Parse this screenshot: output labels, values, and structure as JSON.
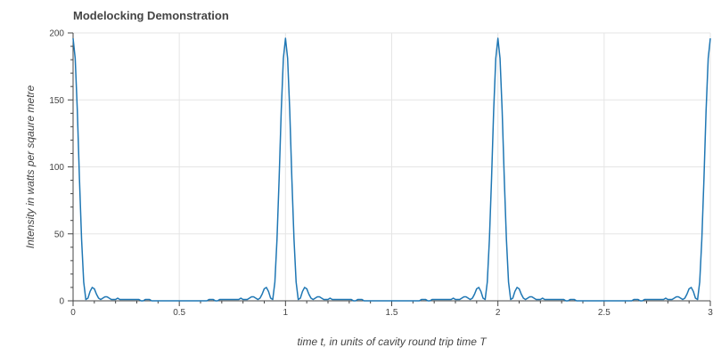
{
  "chart_data": {
    "type": "line",
    "title": "Modelocking Demonstration",
    "xlabel": "time t, in units of cavity round trip time T",
    "ylabel": "Intensity in watts per sqaure metre",
    "xlim": [
      0,
      3
    ],
    "ylim": [
      0,
      200
    ],
    "grid": true,
    "x_ticks": [
      0,
      0.5,
      1,
      1.5,
      2,
      2.5,
      3
    ],
    "x_tick_labels": [
      "0",
      "0.5",
      "1",
      "1.5",
      "2",
      "2.5",
      "3"
    ],
    "y_ticks": [
      0,
      50,
      100,
      150,
      200
    ],
    "y_tick_labels": [
      "0",
      "50",
      "100",
      "150",
      "200"
    ],
    "series": [
      {
        "color": "#1f77b4",
        "peak_value": 196,
        "peak_positions": [
          0,
          1,
          2,
          3
        ],
        "x": [
          0,
          0.01,
          0.02,
          0.03,
          0.04,
          0.05,
          0.06,
          0.07,
          0.08,
          0.09,
          0.1,
          0.11,
          0.12,
          0.13,
          0.14,
          0.15,
          0.16,
          0.17,
          0.18,
          0.19,
          0.2,
          0.21,
          0.22,
          0.23,
          0.24,
          0.25,
          0.26,
          0.27,
          0.28,
          0.29,
          0.3,
          0.31,
          0.32,
          0.33,
          0.34,
          0.35,
          0.36,
          0.37,
          0.38,
          0.39,
          0.4,
          0.41,
          0.42,
          0.43,
          0.44,
          0.45,
          0.46,
          0.47,
          0.48,
          0.49,
          0.5,
          0.51,
          0.52,
          0.53,
          0.54,
          0.55,
          0.56,
          0.57,
          0.58,
          0.59,
          0.6,
          0.61,
          0.62,
          0.63,
          0.64,
          0.65,
          0.66,
          0.67,
          0.68,
          0.69,
          0.7,
          0.71,
          0.72,
          0.73,
          0.74,
          0.75,
          0.76,
          0.77,
          0.78,
          0.79,
          0.8,
          0.81,
          0.82,
          0.83,
          0.84,
          0.85,
          0.86,
          0.87,
          0.88,
          0.89,
          0.9,
          0.91,
          0.92,
          0.93,
          0.94,
          0.95,
          0.96,
          0.97,
          0.98,
          0.99,
          1
        ],
        "y": [
          196,
          181,
          142,
          91,
          46,
          14,
          1,
          2,
          7,
          10,
          9,
          5,
          2,
          1,
          2,
          3,
          3,
          2,
          1,
          1,
          1,
          2,
          1,
          1,
          1,
          1,
          1,
          1,
          1,
          1,
          1,
          1,
          0,
          0,
          1,
          1,
          1,
          0,
          0,
          0,
          0,
          0,
          0,
          0,
          0,
          0,
          0,
          0,
          0,
          0,
          0,
          0,
          0,
          0,
          0,
          0,
          0,
          0,
          0,
          0,
          0,
          0,
          0,
          0,
          1,
          1,
          1,
          0,
          0,
          1,
          1,
          1,
          1,
          1,
          1,
          1,
          1,
          1,
          1,
          2,
          1,
          1,
          1,
          2,
          3,
          3,
          2,
          1,
          2,
          5,
          9,
          10,
          7,
          2,
          1,
          14,
          46,
          91,
          142,
          181,
          196
        ]
      }
    ]
  }
}
